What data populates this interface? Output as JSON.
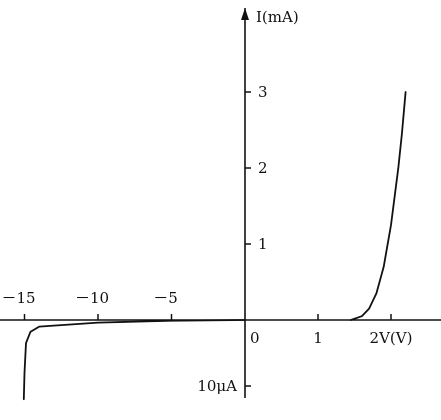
{
  "chart_data": {
    "type": "line",
    "title": "",
    "ylabel": "I(mA)",
    "xlabel": "V(V)",
    "forward_ticks": [
      {
        "value": 0,
        "label": "0"
      },
      {
        "value": 1,
        "label": "1"
      },
      {
        "value": 2,
        "label": "2V(V)"
      }
    ],
    "reverse_ticks": [
      {
        "value": -5,
        "label": "－5"
      },
      {
        "value": -10,
        "label": "－10"
      },
      {
        "value": -15,
        "label": "－15"
      }
    ],
    "y_ticks": [
      {
        "value": 1,
        "label": "1"
      },
      {
        "value": 2,
        "label": "2"
      },
      {
        "value": 3,
        "label": "3"
      }
    ],
    "y_reverse_tick": {
      "value_uA": -10,
      "label": "10μA"
    },
    "series": [
      {
        "segment": "forward",
        "x": [
          1.45,
          1.6,
          1.7,
          1.8,
          1.9,
          2.0,
          2.1,
          2.15,
          2.2
        ],
        "y_mA": [
          0.0,
          0.05,
          0.15,
          0.35,
          0.7,
          1.25,
          2.0,
          2.45,
          3.0
        ]
      },
      {
        "segment": "reverse",
        "x": [
          0,
          -5,
          -10,
          -14.0,
          -14.6,
          -14.9,
          -15.0,
          -15.05
        ],
        "y_uA": [
          0,
          -0.1,
          -0.4,
          -1.0,
          -1.8,
          -3.5,
          -8.0,
          -12.0
        ]
      }
    ],
    "grid": false,
    "legend": "none"
  }
}
